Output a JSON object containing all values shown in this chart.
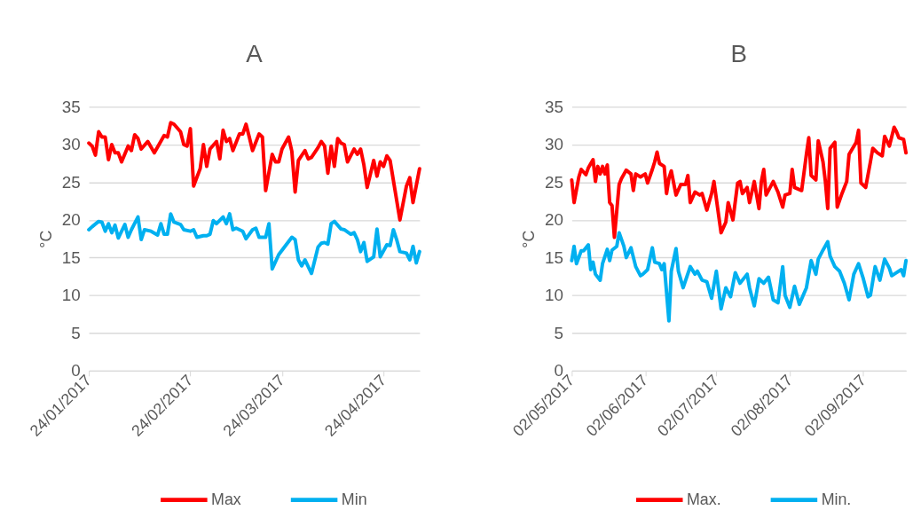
{
  "chart_data": [
    {
      "type": "line",
      "title": "A",
      "ylabel": "°C",
      "xlim": [
        "2017-01-24",
        "2017-05-05"
      ],
      "ylim": [
        0,
        35
      ],
      "yticks": [
        0,
        5,
        10,
        15,
        20,
        25,
        30,
        35
      ],
      "xticks": [
        {
          "value": "2017-01-24",
          "label": "24/01/2017"
        },
        {
          "value": "2017-02-24",
          "label": "24/02/2017"
        },
        {
          "value": "2017-03-24",
          "label": "24/03/2017"
        },
        {
          "value": "2017-04-24",
          "label": "24/04/2017"
        }
      ],
      "grid": "y",
      "legend": "bottom",
      "line_style": "solid",
      "series": [
        {
          "name": "Max",
          "color": "#ff0000",
          "x": [
            "2017-01-24",
            "2017-01-25",
            "2017-01-26",
            "2017-01-27",
            "2017-01-28",
            "2017-01-29",
            "2017-01-30",
            "2017-01-31",
            "2017-02-01",
            "2017-02-02",
            "2017-02-03",
            "2017-02-05",
            "2017-02-06",
            "2017-02-07",
            "2017-02-08",
            "2017-02-09",
            "2017-02-11",
            "2017-02-13",
            "2017-02-16",
            "2017-02-17",
            "2017-02-18",
            "2017-02-19",
            "2017-02-21",
            "2017-02-22",
            "2017-02-23",
            "2017-02-24",
            "2017-02-25",
            "2017-02-27",
            "2017-02-28",
            "2017-03-01",
            "2017-03-02",
            "2017-03-04",
            "2017-03-05",
            "2017-03-06",
            "2017-03-07",
            "2017-03-08",
            "2017-03-09",
            "2017-03-11",
            "2017-03-12",
            "2017-03-13",
            "2017-03-14",
            "2017-03-15",
            "2017-03-17",
            "2017-03-18",
            "2017-03-19",
            "2017-03-21",
            "2017-03-22",
            "2017-03-23",
            "2017-03-24",
            "2017-03-26",
            "2017-03-27",
            "2017-03-28",
            "2017-03-29",
            "2017-03-31",
            "2017-04-01",
            "2017-04-02",
            "2017-04-04",
            "2017-04-05",
            "2017-04-06",
            "2017-04-07",
            "2017-04-08",
            "2017-04-09",
            "2017-04-10",
            "2017-04-11",
            "2017-04-12",
            "2017-04-13",
            "2017-04-15",
            "2017-04-16",
            "2017-04-17",
            "2017-04-18",
            "2017-04-19",
            "2017-04-21",
            "2017-04-22",
            "2017-04-23",
            "2017-04-24",
            "2017-04-25",
            "2017-04-26",
            "2017-04-29",
            "2017-05-01",
            "2017-05-02",
            "2017-05-03",
            "2017-05-05"
          ],
          "values": [
            30.2,
            29.8,
            28.6,
            31.7,
            31.0,
            31.0,
            28.0,
            30.0,
            28.9,
            28.9,
            27.7,
            29.8,
            29.2,
            31.3,
            30.8,
            29.4,
            30.4,
            28.9,
            31.2,
            31.0,
            32.9,
            32.7,
            31.7,
            30.0,
            29.8,
            32.1,
            24.5,
            26.8,
            30.0,
            27.1,
            29.4,
            30.4,
            28.1,
            31.9,
            30.4,
            30.8,
            29.2,
            31.4,
            31.4,
            32.7,
            31.0,
            29.2,
            31.4,
            31.0,
            23.9,
            28.7,
            27.7,
            27.7,
            29.4,
            31.0,
            29.1,
            23.7,
            27.9,
            29.2,
            28.1,
            28.3,
            29.6,
            30.4,
            29.8,
            26.2,
            29.8,
            27.1,
            30.8,
            30.2,
            30.0,
            27.7,
            29.4,
            28.7,
            29.4,
            27.3,
            24.3,
            27.9,
            25.8,
            27.7,
            27.1,
            28.5,
            27.9,
            20.0,
            24.5,
            25.6,
            22.3,
            26.8
          ]
        },
        {
          "name": "Min",
          "color": "#00b0f0",
          "x": [
            "2017-01-24",
            "2017-01-25",
            "2017-01-27",
            "2017-01-28",
            "2017-01-29",
            "2017-01-30",
            "2017-01-31",
            "2017-02-01",
            "2017-02-02",
            "2017-02-04",
            "2017-02-05",
            "2017-02-06",
            "2017-02-08",
            "2017-02-09",
            "2017-02-10",
            "2017-02-12",
            "2017-02-14",
            "2017-02-15",
            "2017-02-16",
            "2017-02-17",
            "2017-02-18",
            "2017-02-19",
            "2017-02-21",
            "2017-02-22",
            "2017-02-24",
            "2017-02-25",
            "2017-02-26",
            "2017-02-28",
            "2017-03-01",
            "2017-03-02",
            "2017-03-03",
            "2017-03-04",
            "2017-03-06",
            "2017-03-07",
            "2017-03-08",
            "2017-03-09",
            "2017-03-10",
            "2017-03-12",
            "2017-03-13",
            "2017-03-15",
            "2017-03-16",
            "2017-03-17",
            "2017-03-19",
            "2017-03-20",
            "2017-03-21",
            "2017-03-23",
            "2017-03-27",
            "2017-03-28",
            "2017-03-29",
            "2017-03-30",
            "2017-03-31",
            "2017-04-02",
            "2017-04-04",
            "2017-04-05",
            "2017-04-06",
            "2017-04-07",
            "2017-04-08",
            "2017-04-09",
            "2017-04-11",
            "2017-04-12",
            "2017-04-14",
            "2017-04-15",
            "2017-04-16",
            "2017-04-17",
            "2017-04-18",
            "2017-04-19",
            "2017-04-21",
            "2017-04-22",
            "2017-04-23",
            "2017-04-25",
            "2017-04-26",
            "2017-04-27",
            "2017-04-28",
            "2017-04-29",
            "2017-05-01",
            "2017-05-02",
            "2017-05-03",
            "2017-05-04",
            "2017-05-05"
          ],
          "values": [
            18.7,
            19.1,
            19.8,
            19.7,
            18.5,
            19.5,
            18.3,
            19.3,
            17.6,
            19.4,
            17.7,
            18.7,
            20.4,
            17.4,
            18.7,
            18.5,
            18.0,
            19.5,
            18.1,
            18.1,
            20.8,
            19.7,
            19.4,
            18.7,
            18.5,
            18.7,
            17.7,
            17.9,
            17.9,
            18.1,
            19.9,
            19.5,
            20.4,
            19.5,
            20.8,
            18.7,
            18.9,
            18.5,
            17.5,
            18.7,
            18.9,
            17.7,
            17.7,
            19.5,
            13.5,
            15.4,
            17.7,
            17.4,
            14.7,
            13.9,
            14.7,
            12.9,
            16.4,
            16.9,
            17.0,
            16.8,
            19.5,
            19.8,
            18.8,
            18.7,
            18.1,
            18.3,
            17.4,
            15.8,
            17.0,
            14.5,
            15.1,
            18.8,
            15.1,
            16.7,
            16.6,
            18.7,
            17.4,
            15.8,
            15.6,
            14.7,
            16.5,
            14.3,
            15.8
          ]
        }
      ]
    },
    {
      "type": "line",
      "title": "B",
      "ylabel": "°C",
      "xlim": [
        "2017-05-02",
        "2017-09-20"
      ],
      "ylim": [
        0,
        35
      ],
      "yticks": [
        0,
        5,
        10,
        15,
        20,
        25,
        30,
        35
      ],
      "xticks": [
        {
          "value": "2017-05-02",
          "label": "02/05/2017"
        },
        {
          "value": "2017-06-02",
          "label": "02/06/2017"
        },
        {
          "value": "2017-07-02",
          "label": "02/07/2017"
        },
        {
          "value": "2017-08-02",
          "label": "02/08/2017"
        },
        {
          "value": "2017-09-02",
          "label": "02/09/2017"
        }
      ],
      "grid": "y",
      "legend": "bottom",
      "line_style": "solid",
      "series": [
        {
          "name": "Max.",
          "color": "#ff0000",
          "x": [
            "2017-05-02",
            "2017-05-03",
            "2017-05-05",
            "2017-05-06",
            "2017-05-08",
            "2017-05-09",
            "2017-05-11",
            "2017-05-12",
            "2017-05-13",
            "2017-05-14",
            "2017-05-15",
            "2017-05-16",
            "2017-05-17",
            "2017-05-18",
            "2017-05-19",
            "2017-05-20",
            "2017-05-22",
            "2017-05-23",
            "2017-05-25",
            "2017-05-27",
            "2017-05-28",
            "2017-05-29",
            "2017-05-31",
            "2017-06-02",
            "2017-06-03",
            "2017-06-05",
            "2017-06-06",
            "2017-06-07",
            "2017-06-08",
            "2017-06-10",
            "2017-06-11",
            "2017-06-12",
            "2017-06-13",
            "2017-06-15",
            "2017-06-17",
            "2017-06-19",
            "2017-06-20",
            "2017-06-21",
            "2017-06-23",
            "2017-06-25",
            "2017-06-26",
            "2017-06-28",
            "2017-06-30",
            "2017-07-01",
            "2017-07-04",
            "2017-07-06",
            "2017-07-07",
            "2017-07-09",
            "2017-07-11",
            "2017-07-12",
            "2017-07-13",
            "2017-07-15",
            "2017-07-16",
            "2017-07-18",
            "2017-07-20",
            "2017-07-21",
            "2017-07-22",
            "2017-07-23",
            "2017-07-26",
            "2017-07-28",
            "2017-07-30",
            "2017-07-31",
            "2017-08-02",
            "2017-08-03",
            "2017-08-04",
            "2017-08-07",
            "2017-08-09",
            "2017-08-10",
            "2017-08-11",
            "2017-08-13",
            "2017-08-14",
            "2017-08-16",
            "2017-08-17",
            "2017-08-18",
            "2017-08-19",
            "2017-08-21",
            "2017-08-22",
            "2017-08-24",
            "2017-08-26",
            "2017-08-27",
            "2017-08-30",
            "2017-08-31",
            "2017-09-01",
            "2017-09-03",
            "2017-09-05",
            "2017-09-06",
            "2017-09-08",
            "2017-09-10",
            "2017-09-11",
            "2017-09-13",
            "2017-09-15",
            "2017-09-16",
            "2017-09-17",
            "2017-09-19",
            "2017-09-20"
          ],
          "values": [
            25.3,
            22.3,
            25.7,
            26.7,
            26.0,
            26.9,
            28.0,
            25.1,
            27.1,
            26.1,
            27.1,
            26.1,
            27.3,
            22.3,
            21.9,
            17.7,
            24.7,
            25.5,
            26.6,
            26.1,
            23.9,
            26.1,
            25.7,
            26.1,
            24.9,
            26.7,
            27.7,
            29.0,
            27.5,
            27.1,
            23.5,
            25.5,
            26.5,
            23.3,
            24.7,
            24.7,
            25.9,
            22.3,
            23.7,
            23.3,
            23.5,
            21.3,
            23.5,
            25.1,
            18.3,
            19.7,
            22.3,
            20.0,
            24.9,
            25.1,
            23.5,
            24.3,
            22.3,
            25.1,
            21.5,
            25.1,
            26.7,
            23.3,
            25.1,
            23.7,
            21.7,
            23.3,
            23.5,
            26.7,
            24.3,
            23.9,
            28.7,
            30.9,
            25.9,
            25.3,
            30.5,
            27.7,
            25.1,
            21.5,
            29.5,
            30.3,
            21.7,
            23.5,
            25.1,
            28.7,
            30.3,
            31.9,
            24.9,
            24.3,
            27.7,
            29.5,
            28.9,
            28.5,
            31.1,
            29.8,
            32.3,
            31.7,
            30.9,
            30.7,
            28.9
          ]
        },
        {
          "name": "Min.",
          "color": "#00b0f0",
          "x": [
            "2017-05-02",
            "2017-05-03",
            "2017-05-04",
            "2017-05-06",
            "2017-05-07",
            "2017-05-09",
            "2017-05-10",
            "2017-05-11",
            "2017-05-12",
            "2017-05-14",
            "2017-05-15",
            "2017-05-17",
            "2017-05-18",
            "2017-05-19",
            "2017-05-21",
            "2017-05-22",
            "2017-05-24",
            "2017-05-25",
            "2017-05-27",
            "2017-05-29",
            "2017-05-31",
            "2017-06-01",
            "2017-06-03",
            "2017-06-05",
            "2017-06-06",
            "2017-06-08",
            "2017-06-09",
            "2017-06-10",
            "2017-06-12",
            "2017-06-13",
            "2017-06-15",
            "2017-06-16",
            "2017-06-18",
            "2017-06-21",
            "2017-06-23",
            "2017-06-24",
            "2017-06-26",
            "2017-06-28",
            "2017-06-30",
            "2017-07-02",
            "2017-07-04",
            "2017-07-06",
            "2017-07-08",
            "2017-07-10",
            "2017-07-12",
            "2017-07-15",
            "2017-07-16",
            "2017-07-18",
            "2017-07-20",
            "2017-07-22",
            "2017-07-24",
            "2017-07-26",
            "2017-07-28",
            "2017-07-30",
            "2017-07-31",
            "2017-08-02",
            "2017-08-04",
            "2017-08-06",
            "2017-08-09",
            "2017-08-11",
            "2017-08-13",
            "2017-08-14",
            "2017-08-16",
            "2017-08-18",
            "2017-08-19",
            "2017-08-21",
            "2017-08-23",
            "2017-08-25",
            "2017-08-27",
            "2017-08-29",
            "2017-08-31",
            "2017-09-02",
            "2017-09-04",
            "2017-09-05",
            "2017-09-07",
            "2017-09-09",
            "2017-09-11",
            "2017-09-13",
            "2017-09-14",
            "2017-09-16",
            "2017-09-18",
            "2017-09-19",
            "2017-09-20"
          ],
          "values": [
            14.6,
            16.5,
            14.2,
            15.9,
            15.9,
            16.7,
            13.4,
            14.4,
            12.8,
            12.0,
            14.2,
            16.1,
            14.6,
            16.0,
            16.5,
            18.3,
            16.5,
            15.0,
            16.3,
            13.8,
            12.6,
            12.8,
            13.4,
            16.3,
            14.4,
            14.2,
            13.4,
            14.2,
            6.6,
            13.2,
            16.2,
            13.2,
            11.0,
            13.8,
            12.8,
            13.2,
            12.0,
            11.8,
            9.6,
            13.2,
            8.2,
            11.0,
            9.8,
            13.0,
            11.6,
            12.8,
            11.0,
            8.6,
            12.2,
            11.6,
            12.4,
            9.4,
            9.0,
            13.8,
            10.0,
            8.4,
            11.2,
            8.8,
            11.0,
            14.6,
            12.8,
            14.8,
            16.0,
            17.1,
            15.2,
            13.8,
            13.2,
            11.6,
            9.4,
            12.8,
            14.2,
            12.2,
            9.8,
            10.0,
            13.8,
            12.0,
            14.8,
            13.6,
            12.6,
            13.0,
            13.4,
            12.6,
            14.6
          ]
        }
      ]
    }
  ]
}
